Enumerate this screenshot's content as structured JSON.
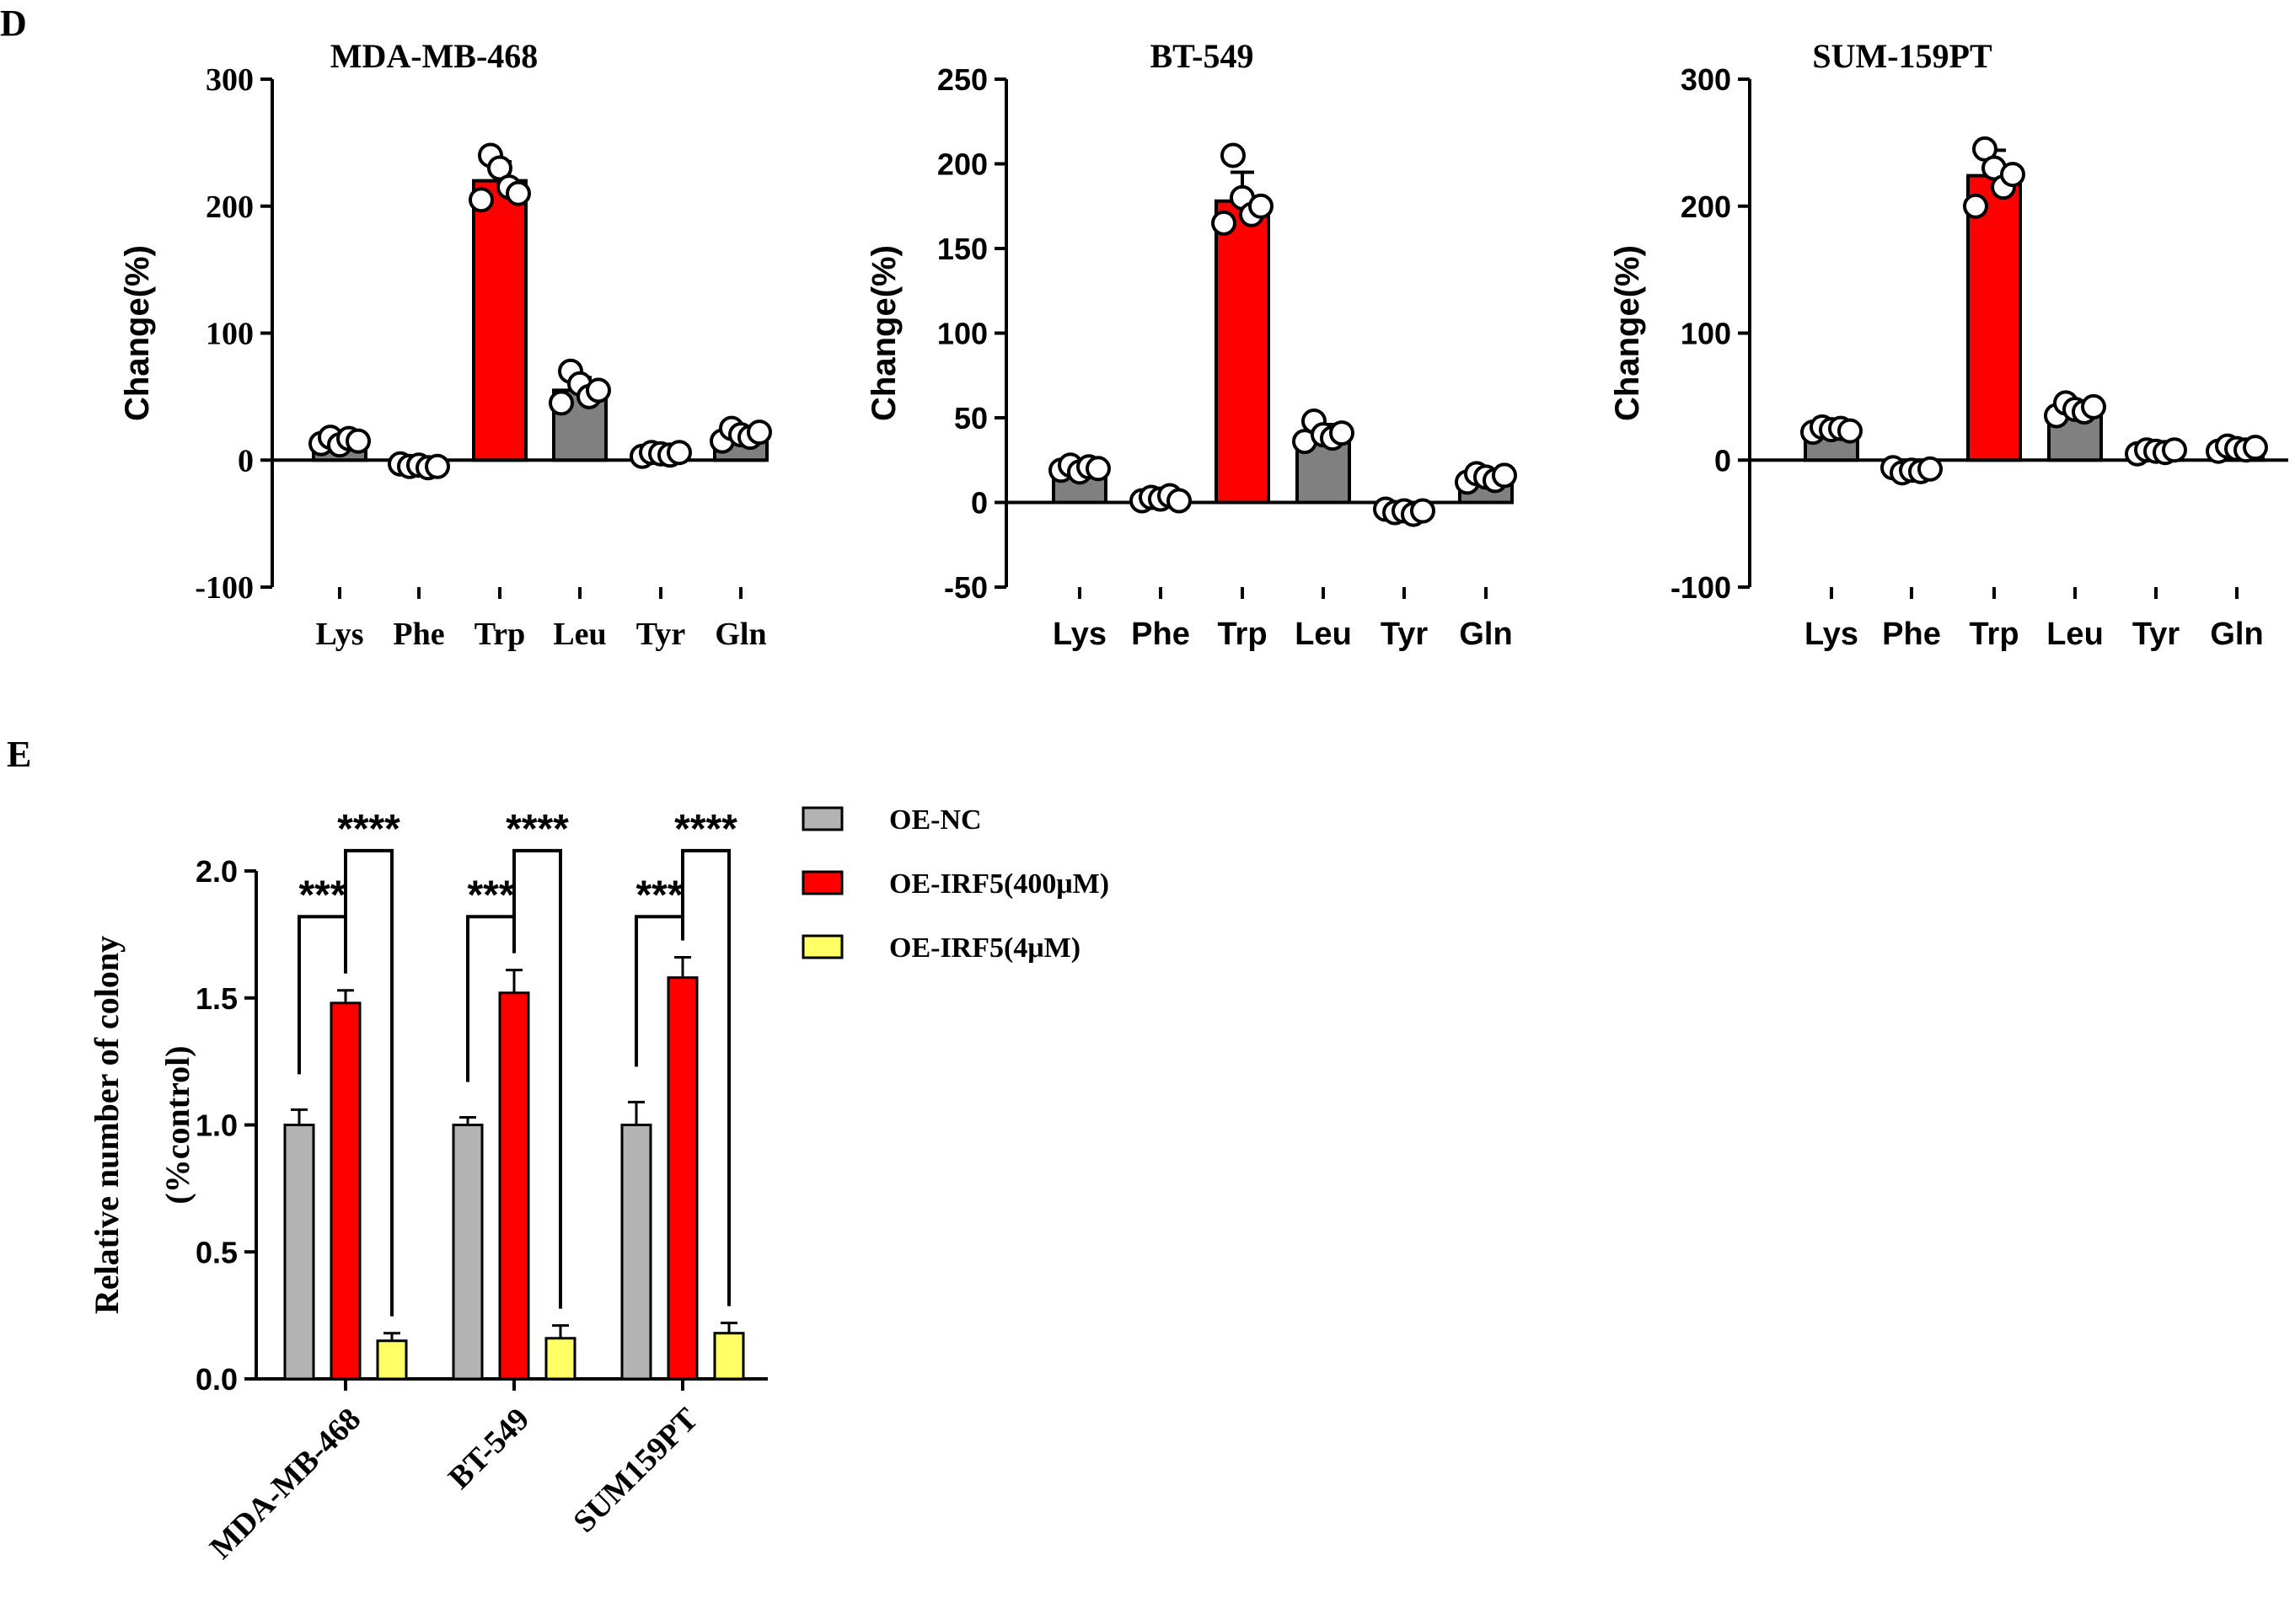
{
  "panel_labels": {
    "d": "D",
    "e": "E"
  },
  "chart_data": [
    {
      "type": "bar",
      "panel": "D",
      "title": "MDA-MB-468",
      "xlabel": "",
      "ylabel": "Change(%)",
      "categories": [
        "Lys",
        "Phe",
        "Trp",
        "Leu",
        "Tyr",
        "Gln"
      ],
      "values": [
        15,
        -5,
        220,
        55,
        5,
        20
      ],
      "errors": [
        4,
        2,
        15,
        10,
        3,
        5
      ],
      "points": [
        [
          13,
          18,
          12,
          17,
          15
        ],
        [
          -3,
          -5,
          -4,
          -6,
          -5
        ],
        [
          205,
          240,
          230,
          215,
          210
        ],
        [
          45,
          70,
          60,
          50,
          55
        ],
        [
          3,
          6,
          5,
          4,
          6
        ],
        [
          15,
          25,
          20,
          18,
          22
        ]
      ],
      "ylim": [
        -100,
        300
      ],
      "yticks": [
        -100,
        0,
        100,
        200,
        300
      ],
      "colors": [
        "#808080",
        "#808080",
        "#ff0000",
        "#808080",
        "#808080",
        "#808080"
      ],
      "title_font": "serif"
    },
    {
      "type": "bar",
      "panel": "D",
      "title": "BT-549",
      "xlabel": "",
      "ylabel": "Change(%)",
      "categories": [
        "Lys",
        "Phe",
        "Trp",
        "Leu",
        "Tyr",
        "Gln"
      ],
      "values": [
        20,
        2,
        178,
        40,
        -5,
        14
      ],
      "errors": [
        3,
        2,
        17,
        6,
        2,
        4
      ],
      "points": [
        [
          19,
          22,
          18,
          21,
          20
        ],
        [
          1,
          3,
          2,
          4,
          1
        ],
        [
          165,
          205,
          180,
          170,
          175
        ],
        [
          36,
          48,
          40,
          38,
          41
        ],
        [
          -4,
          -6,
          -5,
          -7,
          -5
        ],
        [
          12,
          17,
          15,
          13,
          16
        ]
      ],
      "ylim": [
        -50,
        250
      ],
      "yticks": [
        -50,
        0,
        50,
        100,
        150,
        200,
        250
      ],
      "colors": [
        "#808080",
        "#808080",
        "#ff0000",
        "#808080",
        "#808080",
        "#808080"
      ],
      "title_font": "serif"
    },
    {
      "type": "bar",
      "panel": "D",
      "title": "SUM-159PT",
      "xlabel": "",
      "ylabel": "Change(%)",
      "categories": [
        "Lys",
        "Phe",
        "Trp",
        "Leu",
        "Tyr",
        "Gln"
      ],
      "values": [
        24,
        -8,
        224,
        40,
        7,
        9
      ],
      "errors": [
        3,
        2,
        20,
        6,
        2,
        3
      ],
      "points": [
        [
          22,
          26,
          24,
          25,
          23
        ],
        [
          -6,
          -10,
          -8,
          -9,
          -7
        ],
        [
          200,
          245,
          230,
          215,
          225
        ],
        [
          35,
          45,
          40,
          38,
          42
        ],
        [
          5,
          8,
          7,
          6,
          8
        ],
        [
          7,
          11,
          9,
          8,
          10
        ]
      ],
      "ylim": [
        -100,
        300
      ],
      "yticks": [
        -100,
        0,
        100,
        200,
        300
      ],
      "colors": [
        "#808080",
        "#808080",
        "#ff0000",
        "#808080",
        "#808080",
        "#808080"
      ],
      "title_font": "serif"
    },
    {
      "type": "bar",
      "panel": "E",
      "title": "",
      "xlabel": "",
      "ylabel": "Relative number of colony",
      "ylabel2": "(%control)",
      "categories": [
        "MDA-MB-468",
        "BT-549",
        "SUM159PT"
      ],
      "series": [
        {
          "name": "OE-NC",
          "values": [
            1.0,
            1.0,
            1.0
          ],
          "errors": [
            0.06,
            0.03,
            0.09
          ],
          "color": "#b3b3b3"
        },
        {
          "name": "OE-IRF5(400μM)",
          "values": [
            1.48,
            1.52,
            1.58
          ],
          "errors": [
            0.05,
            0.09,
            0.08
          ],
          "color": "#ff0000"
        },
        {
          "name": "OE-IRF5(4μM)",
          "values": [
            0.15,
            0.16,
            0.18
          ],
          "errors": [
            0.03,
            0.05,
            0.04
          ],
          "color": "#ffff66"
        }
      ],
      "ylim": [
        0,
        2.0
      ],
      "yticks": [
        "0.0",
        "0.5",
        "1.0",
        "1.5",
        "2.0"
      ],
      "significance": [
        {
          "category": "MDA-MB-468",
          "from": "OE-NC",
          "to": "OE-IRF5(400μM)",
          "label": "***"
        },
        {
          "category": "MDA-MB-468",
          "from": "OE-IRF5(400μM)",
          "to": "OE-IRF5(4μM)",
          "label": "****"
        },
        {
          "category": "BT-549",
          "from": "OE-NC",
          "to": "OE-IRF5(400μM)",
          "label": "***"
        },
        {
          "category": "BT-549",
          "from": "OE-IRF5(400μM)",
          "to": "OE-IRF5(4μM)",
          "label": "****"
        },
        {
          "category": "SUM159PT",
          "from": "OE-NC",
          "to": "OE-IRF5(400μM)",
          "label": "***"
        },
        {
          "category": "SUM159PT",
          "from": "OE-IRF5(400μM)",
          "to": "OE-IRF5(4μM)",
          "label": "****"
        }
      ],
      "legend_position": "right"
    }
  ]
}
